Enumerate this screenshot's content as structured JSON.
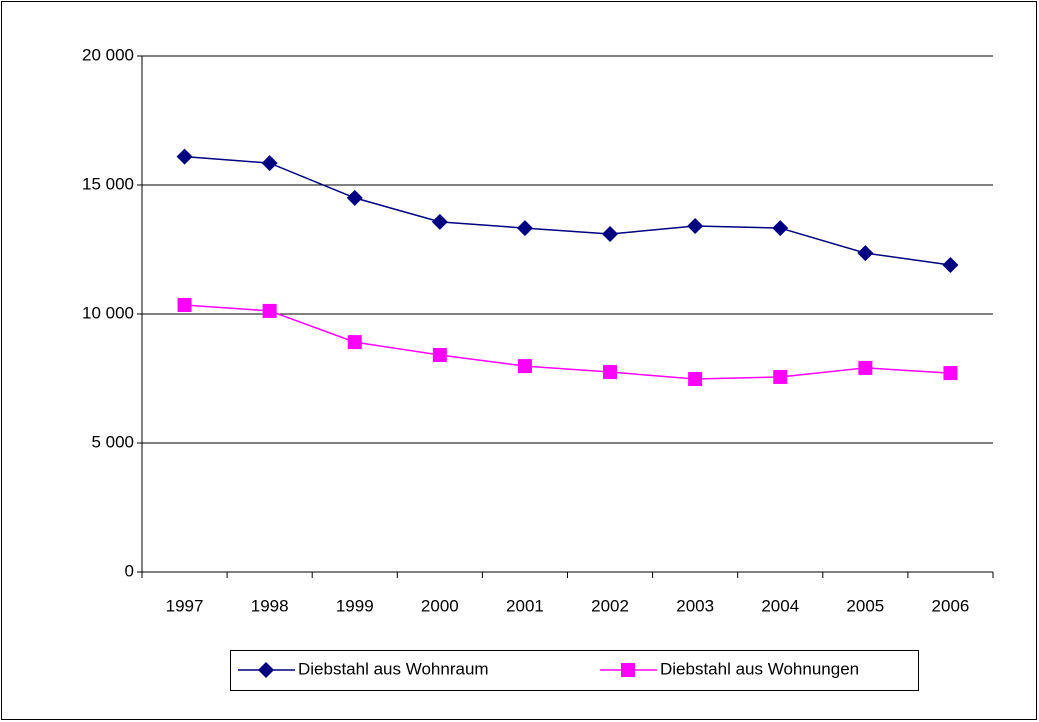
{
  "chart_data": {
    "type": "line",
    "categories": [
      "1997",
      "1998",
      "1999",
      "2000",
      "2001",
      "2002",
      "2003",
      "2004",
      "2005",
      "2006"
    ],
    "series": [
      {
        "name": "Diebstahl aus Wohnraum",
        "color": "#000080",
        "marker": "diamond",
        "values": [
          16100,
          15850,
          14500,
          13570,
          13330,
          13100,
          13410,
          13330,
          12360,
          11900
        ]
      },
      {
        "name": "Diebstahl aus Wohnungen",
        "color": "#ff00ff",
        "marker": "square",
        "values": [
          10350,
          10120,
          8910,
          8410,
          7980,
          7750,
          7480,
          7560,
          7910,
          7710
        ]
      }
    ],
    "ylim": [
      0,
      20000
    ],
    "yticks": [
      0,
      {
        "value": 5000,
        "label": "5 000"
      },
      {
        "value": 10000,
        "label": "10 000"
      },
      {
        "value": 15000,
        "label": "15 000"
      },
      {
        "value": 20000,
        "label": "20 000"
      }
    ],
    "grid": true,
    "legend": "bottom"
  }
}
